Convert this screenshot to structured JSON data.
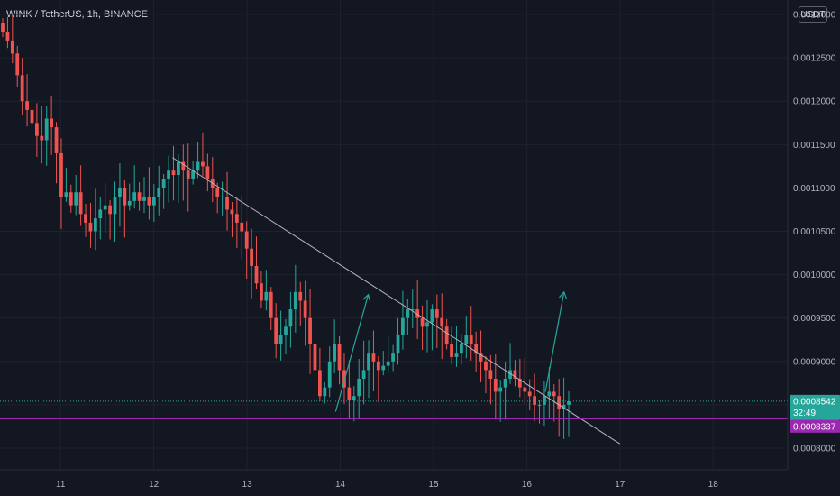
{
  "header": {
    "symbol_title": "WINK / TetherUS, 1h, BINANCE",
    "currency_button": "USDT"
  },
  "colors": {
    "background": "#131722",
    "up_candle": "#26a69a",
    "down_candle": "#ef5350",
    "trendline": "#b2b5be",
    "arrow": "#26a69a",
    "support_line": "#9c27b0",
    "last_price_line": "#26a69a"
  },
  "price_badges": {
    "last_price": "0.0008542",
    "countdown": "32:49",
    "support_price": "0.0008337"
  },
  "chart_data": {
    "type": "candlestick",
    "title": "",
    "xlabel": "",
    "ylabel": "",
    "x_ticks": [
      "11",
      "12",
      "13",
      "14",
      "15",
      "16",
      "17",
      "18"
    ],
    "y_ticks": [
      "0.0013000",
      "0.0012500",
      "0.0012000",
      "0.0011500",
      "0.0011000",
      "0.0010500",
      "0.0010000",
      "0.0009500",
      "0.0009000",
      "0.0008500",
      "0.0008000"
    ],
    "ylim": [
      0.000775,
      0.0013167
    ],
    "x_range_days": [
      10.35,
      18.8
    ],
    "support_level": 0.0008337,
    "last_price": 0.0008542,
    "trendline": {
      "from": [
        12.2,
        0.001135
      ],
      "to": [
        17.0,
        0.000805
      ]
    },
    "arrows": [
      {
        "from": [
          13.95,
          0.000842
        ],
        "to": [
          14.3,
          0.000977
        ]
      },
      {
        "from": [
          16.2,
          0.000865
        ],
        "to": [
          16.4,
          0.00098
        ]
      }
    ],
    "close_series": [
      0.00128,
      0.00127,
      0.001255,
      0.00123,
      0.0012,
      0.00119,
      0.001175,
      0.00116,
      0.001155,
      0.00118,
      0.00117,
      0.00114,
      0.00109,
      0.001095,
      0.00108,
      0.001095,
      0.00107,
      0.00106,
      0.00105,
      0.001065,
      0.001075,
      0.00108,
      0.00107,
      0.00109,
      0.0011,
      0.00108,
      0.001085,
      0.001095,
      0.001085,
      0.00109,
      0.00108,
      0.00109,
      0.0011,
      0.00111,
      0.00112,
      0.001115,
      0.00113,
      0.00112,
      0.00111,
      0.00112,
      0.00113,
      0.001125,
      0.00111,
      0.0011,
      0.00109,
      0.00109,
      0.001075,
      0.00107,
      0.00106,
      0.00105,
      0.00103,
      0.00101,
      0.00099,
      0.00097,
      0.00098,
      0.00095,
      0.00092,
      0.00093,
      0.00094,
      0.00096,
      0.00098,
      0.00097,
      0.00095,
      0.00092,
      0.00089,
      0.00086,
      0.00087,
      0.0009,
      0.00092,
      0.00089,
      0.00087,
      0.000855,
      0.00086,
      0.00088,
      0.00089,
      0.00091,
      0.0009,
      0.00089,
      0.000895,
      0.0009,
      0.00091,
      0.00093,
      0.00095,
      0.00096,
      0.00096,
      0.00095,
      0.00094,
      0.000945,
      0.00096,
      0.00095,
      0.00094,
      0.00092,
      0.000905,
      0.00091,
      0.00092,
      0.00093,
      0.00092,
      0.00091,
      0.0009,
      0.00089,
      0.00088,
      0.000865,
      0.00087,
      0.00088,
      0.00089,
      0.00088,
      0.00087,
      0.000865,
      0.00086,
      0.00085,
      0.00085,
      0.00086,
      0.000865,
      0.00086,
      0.000845,
      0.00085,
      0.000854
    ]
  }
}
